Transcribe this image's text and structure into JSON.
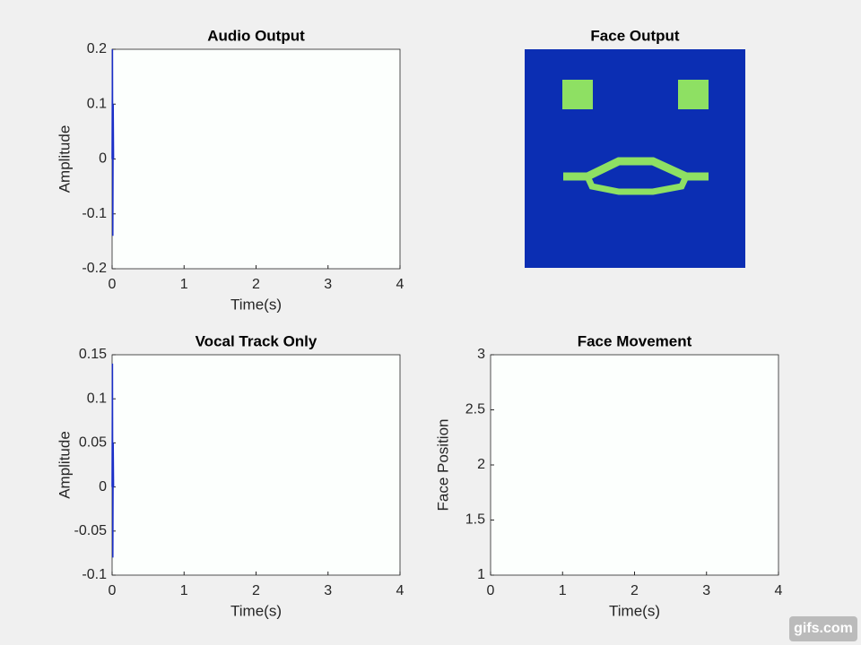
{
  "chart_data": [
    {
      "type": "line",
      "title": "Audio Output",
      "xlabel": "Time(s)",
      "ylabel": "Amplitude",
      "x": [
        0,
        0.005,
        0.01,
        0.015,
        0.02
      ],
      "series": [
        {
          "color": "#1a2fc8",
          "values": [
            0,
            0.2,
            -0.14,
            0.1,
            0
          ]
        }
      ],
      "xlim": [
        0,
        4
      ],
      "xticks": [
        0,
        1,
        2,
        3,
        4
      ],
      "ylim": [
        -0.2,
        0.2
      ],
      "yticks": [
        -0.2,
        -0.1,
        0,
        0.1,
        0.2
      ]
    },
    {
      "type": "image",
      "title": "Face Output"
    },
    {
      "type": "line",
      "title": "Vocal Track Only",
      "xlabel": "Time(s)",
      "ylabel": "Amplitude",
      "x": [
        0,
        0.005,
        0.01,
        0.015,
        0.02
      ],
      "series": [
        {
          "color": "#1a2fc8",
          "values": [
            0,
            0.14,
            -0.08,
            0.05,
            0
          ]
        }
      ],
      "xlim": [
        0,
        4
      ],
      "xticks": [
        0,
        1,
        2,
        3,
        4
      ],
      "ylim": [
        -0.1,
        0.15
      ],
      "yticks": [
        -0.1,
        -0.05,
        0,
        0.05,
        0.1,
        0.15
      ]
    },
    {
      "type": "line",
      "title": "Face Movement",
      "xlabel": "Time(s)",
      "ylabel": "Face Position",
      "xlim": [
        0,
        4
      ],
      "xticks": [
        0,
        1,
        2,
        3,
        4
      ],
      "ylim": [
        1,
        3
      ],
      "yticks": [
        1,
        1.5,
        2,
        2.5,
        3
      ]
    }
  ],
  "watermark": "gifs.com"
}
